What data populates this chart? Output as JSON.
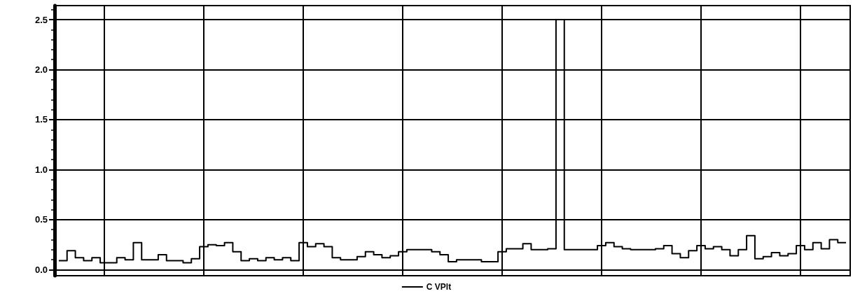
{
  "chart_data": {
    "type": "step",
    "categories": [
      null,
      null,
      null,
      null,
      null,
      null,
      null,
      null,
      null,
      null,
      null,
      null,
      null,
      null,
      null,
      null,
      null,
      null,
      null,
      null,
      null,
      null,
      null,
      null,
      null,
      null,
      null,
      null,
      null,
      null,
      null,
      null,
      null,
      null,
      null,
      null,
      null,
      null,
      null,
      null,
      null,
      null,
      null,
      null,
      null,
      null,
      null,
      null,
      null,
      null,
      null,
      null,
      null,
      null,
      null,
      null,
      null,
      null,
      null,
      null,
      null,
      null,
      null,
      null,
      null,
      null,
      null,
      null,
      null,
      null,
      null,
      null,
      null,
      null,
      null,
      null,
      null,
      null,
      null,
      null,
      null,
      null,
      null,
      null,
      null,
      null,
      null,
      null,
      null,
      null,
      null,
      null,
      null,
      null,
      null,
      null
    ],
    "series": [
      {
        "name": "C VPlt",
        "color": "#000000",
        "values": [
          0.09,
          0.19,
          0.12,
          0.09,
          0.12,
          0.07,
          0.07,
          0.12,
          0.1,
          0.27,
          0.1,
          0.1,
          0.15,
          0.09,
          0.09,
          0.07,
          0.11,
          0.23,
          0.25,
          0.24,
          0.27,
          0.18,
          0.09,
          0.11,
          0.09,
          0.12,
          0.1,
          0.12,
          0.09,
          0.27,
          0.23,
          0.26,
          0.23,
          0.12,
          0.1,
          0.1,
          0.13,
          0.18,
          0.15,
          0.12,
          0.14,
          0.18,
          0.2,
          0.2,
          0.2,
          0.18,
          0.15,
          0.08,
          0.1,
          0.1,
          0.1,
          0.08,
          0.08,
          0.18,
          0.21,
          0.21,
          0.26,
          0.2,
          0.2,
          0.21,
          2.5,
          0.2,
          0.2,
          0.2,
          0.2,
          0.24,
          0.27,
          0.23,
          0.21,
          0.2,
          0.2,
          0.2,
          0.21,
          0.24,
          0.16,
          0.12,
          0.19,
          0.24,
          0.21,
          0.23,
          0.2,
          0.14,
          0.2,
          0.34,
          0.11,
          0.13,
          0.17,
          0.14,
          0.16,
          0.24,
          0.2,
          0.27,
          0.21,
          0.3,
          0.27,
          0.27
        ]
      }
    ],
    "ylim": [
      -0.06,
      2.64
    ],
    "yticks": [
      {
        "value": 0,
        "label": "0.0"
      },
      0.5,
      {
        "value": 1,
        "label": "1.0"
      },
      1.5,
      {
        "value": 2,
        "label": "2.0"
      },
      2.5
    ],
    "tick_labels": "y",
    "grid": true,
    "legend": "bottom",
    "marker": "none",
    "line_style": "solid"
  }
}
